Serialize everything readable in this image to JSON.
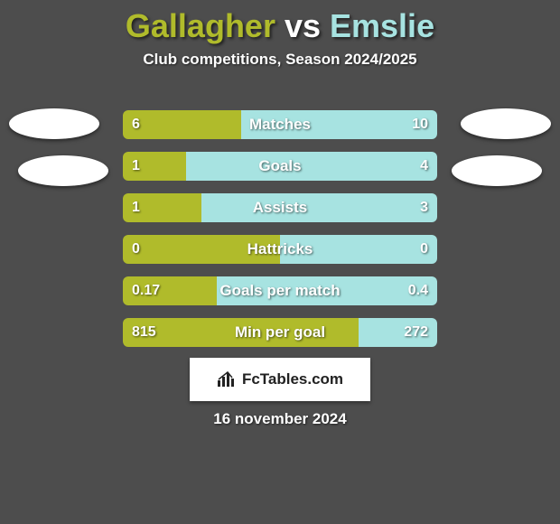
{
  "title": {
    "left_text": "Gallagher",
    "vs_text": " vs ",
    "right_text": "Emslie",
    "fontsize": 36,
    "left_color": "#b0bb2b",
    "vs_color": "#ffffff",
    "right_color": "#a7e3e1"
  },
  "subtitle": {
    "text": "Club competitions, Season 2024/2025",
    "fontsize": 17
  },
  "colors": {
    "left": "#b0bb2b",
    "right": "#a7e3e1",
    "background": "#4d4d4d",
    "value_text": "#ffffff",
    "label_text": "#ffffff"
  },
  "row_style": {
    "value_fontsize": 16,
    "label_fontsize": 17,
    "height": 32,
    "gap": 14,
    "border_radius": 6
  },
  "rows": [
    {
      "label": "Matches",
      "left": "6",
      "right": "10",
      "left_pct": 37.5,
      "right_pct": 62.5
    },
    {
      "label": "Goals",
      "left": "1",
      "right": "4",
      "left_pct": 20.0,
      "right_pct": 80.0
    },
    {
      "label": "Assists",
      "left": "1",
      "right": "3",
      "left_pct": 25.0,
      "right_pct": 75.0
    },
    {
      "label": "Hattricks",
      "left": "0",
      "right": "0",
      "left_pct": 50.0,
      "right_pct": 50.0
    },
    {
      "label": "Goals per match",
      "left": "0.17",
      "right": "0.4",
      "left_pct": 29.8,
      "right_pct": 70.2
    },
    {
      "label": "Min per goal",
      "left": "815",
      "right": "272",
      "left_pct": 75.0,
      "right_pct": 25.0
    }
  ],
  "footer": {
    "brand": "FcTables.com",
    "brand_fontsize": 17
  },
  "date": {
    "text": "16 november 2024",
    "fontsize": 17
  }
}
